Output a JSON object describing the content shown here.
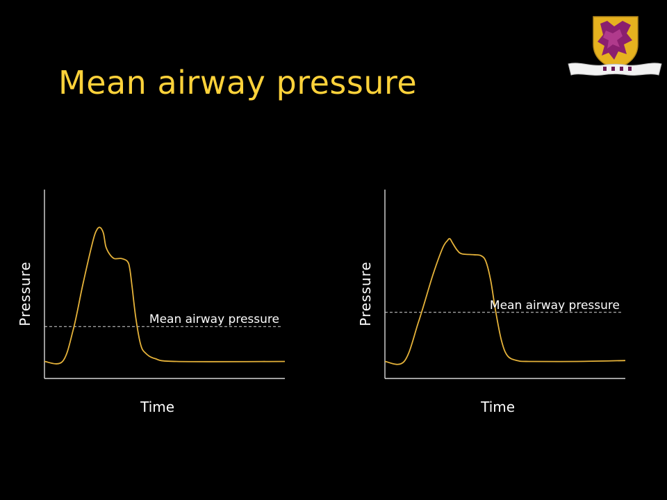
{
  "slide": {
    "title": "Mean airway pressure"
  },
  "logo": {
    "icon": "university-crest-icon",
    "colors": {
      "shield": "#e6b21f",
      "emblem": "#8a1f6f",
      "banner": "#f2f2f2"
    }
  },
  "colors": {
    "title": "#ffd23a",
    "waveform": "#e6b33a",
    "axes": "#ffffff",
    "mean_line": "#d8d8d8",
    "text": "#ffffff"
  },
  "chart_data": [
    {
      "type": "line",
      "xlabel": "Time",
      "ylabel": "Pressure",
      "xlim": [
        0,
        100
      ],
      "ylim": [
        0,
        100
      ],
      "grid": false,
      "series": [
        {
          "points": [
            [
              0,
              9
            ],
            [
              7.5,
              9
            ],
            [
              12,
              26
            ],
            [
              16,
              50
            ],
            [
              20,
              72
            ],
            [
              21.5,
              78
            ],
            [
              23,
              80
            ],
            [
              24.5,
              77
            ],
            [
              25.5,
              70
            ],
            [
              27,
              66
            ],
            [
              29,
              63.5
            ],
            [
              32,
              63.5
            ],
            [
              34.5,
              62
            ],
            [
              35.5,
              58
            ],
            [
              36.5,
              48
            ],
            [
              38,
              32
            ],
            [
              40,
              18
            ],
            [
              42,
              13.5
            ],
            [
              46,
              10.5
            ],
            [
              55,
              9
            ],
            [
              100,
              9
            ]
          ]
        }
      ],
      "annotations": [
        {
          "label": "Mean airway pressure",
          "type": "hline",
          "y": 27.5
        }
      ]
    },
    {
      "type": "line",
      "xlabel": "Time",
      "ylabel": "Pressure",
      "xlim": [
        0,
        100
      ],
      "ylim": [
        0,
        100
      ],
      "grid": false,
      "series": [
        {
          "points": [
            [
              0,
              9
            ],
            [
              8,
              9
            ],
            [
              14,
              30
            ],
            [
              20,
              55
            ],
            [
              24,
              69
            ],
            [
              26,
              73
            ],
            [
              27,
              74
            ],
            [
              28,
              72
            ],
            [
              30,
              68
            ],
            [
              32,
              66
            ],
            [
              37,
              65.5
            ],
            [
              40,
              65
            ],
            [
              42,
              62
            ],
            [
              44,
              52
            ],
            [
              46,
              36
            ],
            [
              48.5,
              20
            ],
            [
              51,
              12
            ],
            [
              55,
              9.5
            ],
            [
              60,
              9
            ],
            [
              80,
              9
            ],
            [
              100,
              9.5
            ]
          ]
        }
      ],
      "annotations": [
        {
          "label": "Mean airway pressure",
          "type": "hline",
          "y": 35
        }
      ]
    }
  ]
}
